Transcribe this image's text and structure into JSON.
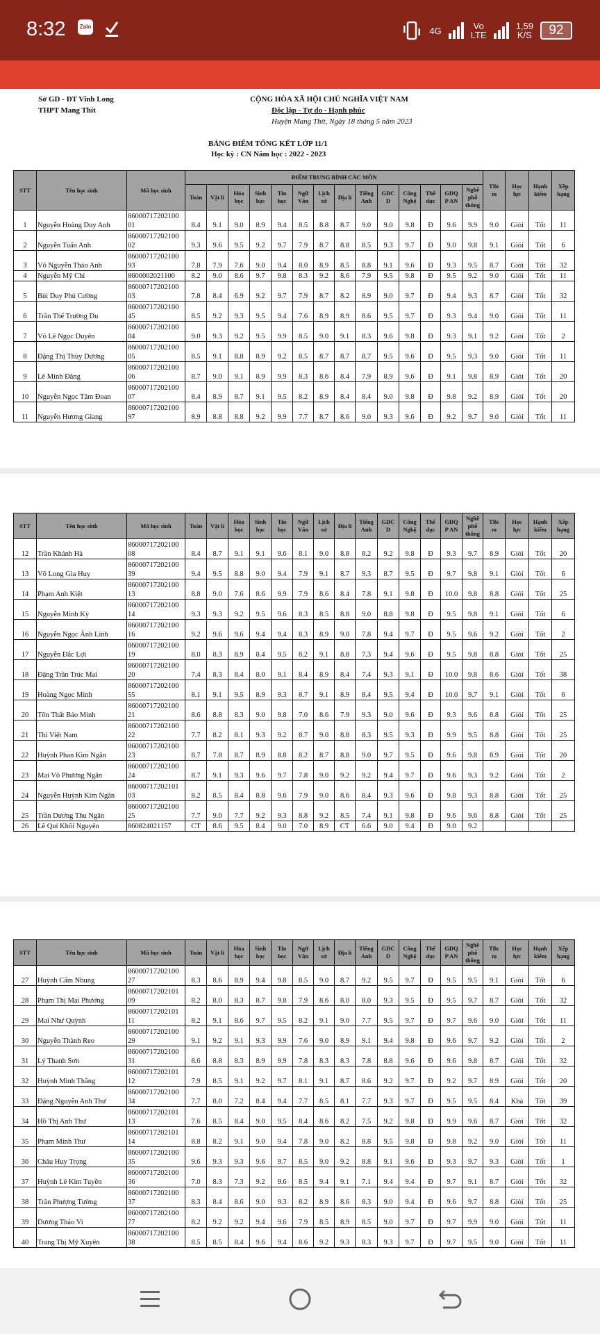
{
  "status_bar": {
    "time": "8:32",
    "zalo_label": "Zalo",
    "network_4g": "4G",
    "volte_top": "Vo",
    "volte_bottom": "LTE",
    "speed_value": "1,59",
    "speed_unit": "K/S",
    "battery": "92"
  },
  "document": {
    "dept": "Sở GD - ĐT Vĩnh Long",
    "school": "THPT Mang Thít",
    "nation": "CỘNG HÒA XÃ HỘI CHỦ NGHĨA VIỆT NAM",
    "motto": "Độc lập - Tự do - Hạnh phúc",
    "date_line": "Huyện Mang Thít, Ngày 18 tháng 5 năm 2023",
    "title": "BẢNG ĐIỂM TỔNG KẾT LỚP 11/1",
    "subtitle": "Học kỳ : CN Năm học : 2022 - 2023"
  },
  "table": {
    "group_header": "ĐIỂM TRUNG BÌNH CÁC MÔN",
    "columns": [
      "STT",
      "Tên học sinh",
      "Mã học sinh",
      "Toán",
      "Vật lí",
      "Hóa\nhọc",
      "Sinh\nhọc",
      "Tin\nhọc",
      "Ngữ\nVăn",
      "Lịch\nsử",
      "Địa lí",
      "Tiếng\nAnh",
      "GDC\nD",
      "Công\nNghệ",
      "Thể\ndục",
      "GDQ\nP AN",
      "Nghề\nphổ\nthông",
      "TBc\nm",
      "Học\nlực",
      "Hạnh\nkiểm",
      "Xếp\nhạng"
    ],
    "pages": [
      {
        "rows": [
          [
            "1",
            "Nguyễn Hoàng Duy Anh",
            "8600071720210001",
            "8.4",
            "9.1",
            "9.0",
            "8.9",
            "9.4",
            "8.5",
            "8.8",
            "8.7",
            "9.0",
            "9.0",
            "9.8",
            "Đ",
            "9.6",
            "9.9",
            "9.0",
            "Giỏi",
            "Tốt",
            "11"
          ],
          [
            "2",
            "Nguyễn Tuấn Anh",
            "8600071720210002",
            "9.3",
            "9.6",
            "9.5",
            "9.2",
            "9.7",
            "7.9",
            "8.7",
            "8.8",
            "8.5",
            "9.3",
            "9.7",
            "Đ",
            "9.0",
            "9.8",
            "9.1",
            "Giỏi",
            "Tốt",
            "6"
          ],
          [
            "3",
            "Võ Nguyễn Thảo Anh",
            "8600071720210093",
            "7.8",
            "7.9",
            "7.6",
            "9.0",
            "9.4",
            "8.0",
            "8.9",
            "8.5",
            "8.8",
            "9.1",
            "9.6",
            "Đ",
            "9.3",
            "9.5",
            "8.7",
            "Giỏi",
            "Tốt",
            "32"
          ],
          [
            "4",
            "Nguyễn Mỹ Chi",
            "8600002021100",
            "8.2",
            "9.0",
            "8.6",
            "9.7",
            "9.8",
            "8.3",
            "9.2",
            "8.6",
            "7.9",
            "9.5",
            "9.8",
            "Đ",
            "9.5",
            "9.2",
            "9.0",
            "Giỏi",
            "Tốt",
            "11"
          ],
          [
            "5",
            "Bùi Duy Phú Cường",
            "8600071720210003",
            "7.8",
            "8.4",
            "6.9",
            "9.2",
            "9.7",
            "7.9",
            "8.7",
            "8.2",
            "8.9",
            "9.0",
            "9.7",
            "Đ",
            "9.4",
            "9.3",
            "8.7",
            "Giỏi",
            "Tốt",
            "32"
          ],
          [
            "6",
            "Trần Thế Trường Du",
            "8600071720210045",
            "8.5",
            "9.2",
            "9.3",
            "9.5",
            "9.4",
            "7.6",
            "8.9",
            "8.9",
            "8.6",
            "9.5",
            "9.7",
            "Đ",
            "9.3",
            "9.4",
            "9.0",
            "Giỏi",
            "Tốt",
            "11"
          ],
          [
            "7",
            "Võ Lê Ngọc Duyên",
            "8600071720210004",
            "9.0",
            "9.3",
            "9.2",
            "9.5",
            "9.9",
            "8.5",
            "9.0",
            "9.1",
            "8.3",
            "9.6",
            "9.8",
            "Đ",
            "9.3",
            "9.1",
            "9.2",
            "Giỏi",
            "Tốt",
            "2"
          ],
          [
            "8",
            "Đặng Thị Thùy Dương",
            "8600071720210005",
            "8.5",
            "9.1",
            "8.8",
            "8.9",
            "9.2",
            "8.5",
            "8.7",
            "8.7",
            "8.7",
            "9.5",
            "9.6",
            "Đ",
            "9.5",
            "9.3",
            "9.0",
            "Giỏi",
            "Tốt",
            "11"
          ],
          [
            "9",
            "Lê Minh Đăng",
            "8600071720210006",
            "8.7",
            "9.0",
            "9.1",
            "8.9",
            "9.9",
            "8.3",
            "8.6",
            "8.4",
            "7.9",
            "8.9",
            "9.6",
            "Đ",
            "9.1",
            "9.8",
            "8.9",
            "Giỏi",
            "Tốt",
            "20"
          ],
          [
            "10",
            "Nguyễn Ngọc Tâm Đoan",
            "8600071720210007",
            "8.4",
            "8.9",
            "8.7",
            "9.1",
            "9.5",
            "8.2",
            "8.9",
            "8.4",
            "8.4",
            "9.0",
            "9.8",
            "Đ",
            "9.8",
            "9.2",
            "8.9",
            "Giỏi",
            "Tốt",
            "20"
          ],
          [
            "11",
            "Nguyễn Hương Giang",
            "8600071720210097",
            "8.9",
            "8.8",
            "8.8",
            "9.2",
            "9.9",
            "7.7",
            "8.7",
            "8.6",
            "9.0",
            "9.3",
            "9.6",
            "Đ",
            "9.2",
            "9.7",
            "9.0",
            "Giỏi",
            "Tốt",
            "11"
          ]
        ]
      },
      {
        "rows": [
          [
            "12",
            "Trần Khánh Hà",
            "8600071720210008",
            "8.4",
            "8.7",
            "9.1",
            "9.1",
            "9.6",
            "8.1",
            "9.0",
            "8.8",
            "8.2",
            "9.2",
            "9.8",
            "Đ",
            "9.3",
            "9.7",
            "8.9",
            "Giỏi",
            "Tốt",
            "20"
          ],
          [
            "13",
            "Võ Long Gia Huy",
            "8600071720210039",
            "9.4",
            "9.5",
            "8.8",
            "9.0",
            "9.4",
            "7.9",
            "9.1",
            "8.7",
            "9.3",
            "8.7",
            "9.5",
            "Đ",
            "9.7",
            "9.8",
            "9.1",
            "Giỏi",
            "Tốt",
            "6"
          ],
          [
            "14",
            "Phạm Anh Kiệt",
            "8600071720210013",
            "8.8",
            "9.0",
            "7.6",
            "8.6",
            "9.9",
            "7.9",
            "8.6",
            "8.4",
            "7.8",
            "9.1",
            "9.8",
            "Đ",
            "10.0",
            "9.8",
            "8.8",
            "Giỏi",
            "Tốt",
            "25"
          ],
          [
            "15",
            "Nguyễn Minh Kỳ",
            "8600071720210014",
            "9.3",
            "9.3",
            "9.2",
            "9.5",
            "9.6",
            "8.3",
            "8.5",
            "8.8",
            "9.0",
            "8.8",
            "9.8",
            "Đ",
            "9.5",
            "9.8",
            "9.1",
            "Giỏi",
            "Tốt",
            "6"
          ],
          [
            "16",
            "Nguyễn Ngọc Ánh Linh",
            "8600071720210016",
            "9.2",
            "9.6",
            "9.6",
            "9.4",
            "9.4",
            "8.3",
            "8.9",
            "9.0",
            "7.8",
            "9.4",
            "9.7",
            "Đ",
            "9.5",
            "9.6",
            "9.2",
            "Giỏi",
            "Tốt",
            "2"
          ],
          [
            "17",
            "Nguyễn Đắc Lợi",
            "8600071720210019",
            "8.0",
            "8.3",
            "8.9",
            "8.4",
            "9.5",
            "8.2",
            "9.1",
            "8.8",
            "7.3",
            "9.4",
            "9.6",
            "Đ",
            "9.5",
            "9.8",
            "8.8",
            "Giỏi",
            "Tốt",
            "25"
          ],
          [
            "18",
            "Đặng Trần Trúc Mai",
            "8600071720210020",
            "7.4",
            "8.3",
            "8.4",
            "8.0",
            "9.1",
            "8.4",
            "8.9",
            "8.4",
            "7.4",
            "9.3",
            "9.1",
            "Đ",
            "10.0",
            "9.8",
            "8.6",
            "Giỏi",
            "Tốt",
            "38"
          ],
          [
            "19",
            "Hoàng Ngọc Minh",
            "8600071720210055",
            "8.1",
            "9.1",
            "9.5",
            "8.9",
            "9.3",
            "8.7",
            "9.1",
            "8.9",
            "8.4",
            "9.5",
            "9.4",
            "Đ",
            "10.0",
            "9.7",
            "9.1",
            "Giỏi",
            "Tốt",
            "6"
          ],
          [
            "20",
            "Tôn Thất Bảo Minh",
            "8600071720210021",
            "8.6",
            "8.8",
            "8.3",
            "9.0",
            "9.8",
            "7.0",
            "8.6",
            "7.9",
            "9.3",
            "9.0",
            "9.6",
            "Đ",
            "9.3",
            "9.6",
            "8.8",
            "Giỏi",
            "Tốt",
            "25"
          ],
          [
            "21",
            "Thi Việt Nam",
            "8600071720210022",
            "7.7",
            "8.2",
            "8.1",
            "9.3",
            "9.2",
            "8.7",
            "9.0",
            "8.8",
            "8.3",
            "9.5",
            "9.3",
            "Đ",
            "9.9",
            "9.5",
            "8.8",
            "Giỏi",
            "Tốt",
            "25"
          ],
          [
            "22",
            "Huỳnh Phan Kim Ngân",
            "8600071720210023",
            "8.7",
            "7.8",
            "8.7",
            "8.9",
            "8.8",
            "8.2",
            "8.7",
            "8.8",
            "9.0",
            "9.7",
            "9.5",
            "Đ",
            "9.6",
            "9.8",
            "8.9",
            "Giỏi",
            "Tốt",
            "20"
          ],
          [
            "23",
            "Mai Võ Phương Ngân",
            "8600071720210024",
            "8.7",
            "9.1",
            "9.3",
            "9.6",
            "9.7",
            "7.8",
            "9.0",
            "9.2",
            "9.2",
            "9.4",
            "9.7",
            "Đ",
            "9.6",
            "9.3",
            "9.2",
            "Giỏi",
            "Tốt",
            "2"
          ],
          [
            "24",
            "Nguyễn Huỳnh Kim Ngân",
            "8600071720210103",
            "8.2",
            "8.5",
            "8.4",
            "8.8",
            "9.6",
            "7.9",
            "9.0",
            "8.6",
            "8.4",
            "9.3",
            "9.6",
            "Đ",
            "9.8",
            "9.3",
            "8.8",
            "Giỏi",
            "Tốt",
            "25"
          ],
          [
            "25",
            "Trần Dương Thu Ngân",
            "8600071720210025",
            "7.7",
            "9.0",
            "7.7",
            "9.2",
            "9.3",
            "8.8",
            "9.2",
            "8.5",
            "7.4",
            "9.1",
            "9.8",
            "Đ",
            "9.6",
            "9.6",
            "8.8",
            "Giỏi",
            "Tốt",
            "25"
          ],
          [
            "26",
            "Lê Quí Khôi Nguyên",
            "860824021157",
            "CT",
            "8.6",
            "9.5",
            "8.4",
            "9.0",
            "7.0",
            "8.9",
            "CT",
            "6.6",
            "9.0",
            "9.4",
            "Đ",
            "9.0",
            "9.2",
            "",
            "",
            "",
            ""
          ]
        ]
      },
      {
        "rows": [
          [
            "27",
            "Huỳnh Cẩm Nhung",
            "8600071720210027",
            "8.3",
            "8.6",
            "8.9",
            "9.4",
            "9.8",
            "8.5",
            "9.0",
            "8.7",
            "9.2",
            "9.5",
            "9.7",
            "Đ",
            "9.5",
            "9.5",
            "9.1",
            "Giỏi",
            "Tốt",
            "6"
          ],
          [
            "28",
            "Phạm Thị Mai Phương",
            "8600071720210109",
            "8.2",
            "8.0",
            "8.3",
            "8.7",
            "9.8",
            "7.9",
            "8.6",
            "8.0",
            "8.0",
            "9.3",
            "9.5",
            "Đ",
            "9.5",
            "9.7",
            "8.7",
            "Giỏi",
            "Tốt",
            "32"
          ],
          [
            "29",
            "Mai Như Quỳnh",
            "8600071720210111",
            "8.2",
            "9.1",
            "8.6",
            "9.7",
            "9.5",
            "8.2",
            "9.1",
            "9.0",
            "7.7",
            "9.5",
            "9.7",
            "Đ",
            "9.7",
            "9.6",
            "9.0",
            "Giỏi",
            "Tốt",
            "11"
          ],
          [
            "30",
            "Nguyễn Thành Reo",
            "8600071720210029",
            "9.1",
            "9.2",
            "9.1",
            "9.3",
            "9.9",
            "7.6",
            "9.0",
            "8.9",
            "9.1",
            "9.4",
            "9.8",
            "Đ",
            "9.6",
            "9.7",
            "9.2",
            "Giỏi",
            "Tốt",
            "2"
          ],
          [
            "31",
            "Lý Thanh Sơn",
            "8600071720210031",
            "8.6",
            "8.8",
            "8.3",
            "8.9",
            "9.9",
            "7.8",
            "8.3",
            "8.3",
            "7.8",
            "8.8",
            "9.6",
            "Đ",
            "9.6",
            "9.8",
            "8.7",
            "Giỏi",
            "Tốt",
            "32"
          ],
          [
            "32",
            "Huỳnh Minh Thắng",
            "8600071720210112",
            "7.9",
            "8.5",
            "9.1",
            "9.2",
            "9.7",
            "8.1",
            "9.1",
            "8.7",
            "8.6",
            "9.2",
            "9.7",
            "Đ",
            "9.2",
            "9.7",
            "8.9",
            "Giỏi",
            "Tốt",
            "20"
          ],
          [
            "33",
            "Đặng Nguyễn Anh Thư",
            "8600071720210034",
            "7.7",
            "8.0",
            "7.2",
            "8.4",
            "9.4",
            "7.7",
            "8.5",
            "8.1",
            "7.7",
            "9.3",
            "9.7",
            "Đ",
            "9.5",
            "9.5",
            "8.4",
            "Khá",
            "Tốt",
            "39"
          ],
          [
            "34",
            "Hồ Thị Anh Thư",
            "8600071720210113",
            "7.6",
            "8.5",
            "8.4",
            "9.0",
            "9.5",
            "8.4",
            "8.6",
            "8.2",
            "7.5",
            "9.2",
            "9.8",
            "Đ",
            "9.9",
            "9.6",
            "8.7",
            "Giỏi",
            "Tốt",
            "32"
          ],
          [
            "35",
            "Phạm Minh Thư",
            "8600071720210114",
            "8.8",
            "8.2",
            "9.1",
            "9.0",
            "9.4",
            "7.8",
            "9.0",
            "8.2",
            "8.8",
            "9.5",
            "9.8",
            "Đ",
            "9.8",
            "9.2",
            "9.0",
            "Giỏi",
            "Tốt",
            "11"
          ],
          [
            "36",
            "Châu Huy Trọng",
            "8600071720210035",
            "9.6",
            "9.3",
            "9.3",
            "9.6",
            "9.7",
            "8.5",
            "9.0",
            "9.2",
            "8.8",
            "9.1",
            "9.6",
            "Đ",
            "9.3",
            "9.7",
            "9.3",
            "Giỏi",
            "Tốt",
            "1"
          ],
          [
            "37",
            "Huỳnh Lê Kim Tuyền",
            "8600071720210036",
            "7.0",
            "8.3",
            "7.3",
            "9.2",
            "9.6",
            "8.5",
            "9.4",
            "9.1",
            "7.1",
            "9.4",
            "9.4",
            "Đ",
            "9.7",
            "9.1",
            "8.7",
            "Giỏi",
            "Tốt",
            "32"
          ],
          [
            "38",
            "Trần Phượng Tường",
            "8600071720210037",
            "8.3",
            "8.4",
            "8.6",
            "9.0",
            "9.3",
            "8.2",
            "8.9",
            "8.6",
            "8.3",
            "9.0",
            "9.4",
            "Đ",
            "9.6",
            "9.7",
            "8.8",
            "Giỏi",
            "Tốt",
            "25"
          ],
          [
            "39",
            "Dương Thảo Vi",
            "8600071720210077",
            "8.2",
            "9.2",
            "9.2",
            "9.4",
            "9.6",
            "7.9",
            "8.5",
            "8.9",
            "8.5",
            "9.0",
            "9.7",
            "Đ",
            "9.7",
            "9.9",
            "9.0",
            "Giỏi",
            "Tốt",
            "11"
          ],
          [
            "40",
            "Trang Thị Mỹ Xuyên",
            "8600071720210038",
            "8.5",
            "8.5",
            "8.4",
            "9.6",
            "9.4",
            "8.6",
            "9.2",
            "9.3",
            "8.3",
            "9.3",
            "9.7",
            "Đ",
            "9.7",
            "9.5",
            "9.0",
            "Giỏi",
            "Tốt",
            "11"
          ]
        ]
      }
    ]
  },
  "colors": {
    "status_bar": "#882519",
    "app_bar": "#e0412e",
    "table_header": "#a3a3a3"
  },
  "nav_bar": {
    "icons": [
      "menu-icon",
      "home-circle-icon",
      "back-icon"
    ]
  }
}
